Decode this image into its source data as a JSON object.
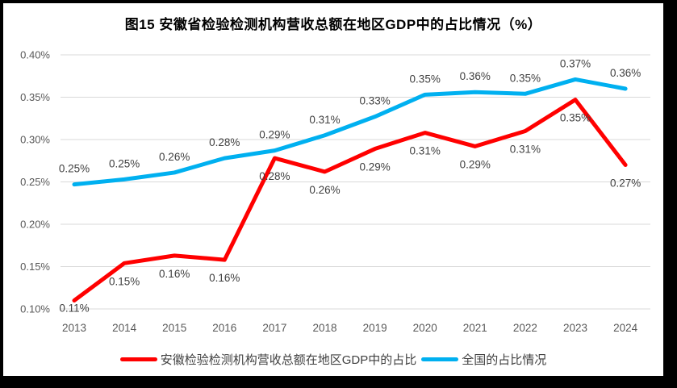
{
  "title": "图15 安徽省检验检测机构营收总额在地区GDP中的占比情况（%）",
  "colors": {
    "anhui_line": "#FF0000",
    "national_line": "#00B0F0",
    "gridline": "#D9D9D9",
    "tick_label": "#595959",
    "data_label": "#404040",
    "frame_border": "#000000",
    "background": "#FFFFFF"
  },
  "chart_data": {
    "type": "line",
    "title": "图15 安徽省检验检测机构营收总额在地区GDP中的占比情况（%）",
    "xlabel": "",
    "ylabel": "",
    "categories": [
      "2013",
      "2014",
      "2015",
      "2016",
      "2017",
      "2018",
      "2019",
      "2020",
      "2021",
      "2022",
      "2023",
      "2024"
    ],
    "y_ticks": [
      "0.10%",
      "0.15%",
      "0.20%",
      "0.25%",
      "0.30%",
      "0.35%",
      "0.40%"
    ],
    "ylim": [
      0.1,
      0.4
    ],
    "y_step": 0.05,
    "grid": "horizontal",
    "legend_position": "bottom",
    "series": [
      {
        "name": "安徽检验检测机构营收总额在地区GDP中的占比",
        "color": "#FF0000",
        "label_position": "below",
        "values": [
          0.11,
          0.15,
          0.16,
          0.16,
          0.28,
          0.26,
          0.29,
          0.31,
          0.29,
          0.31,
          0.35,
          0.27
        ],
        "labels": [
          "0.11%",
          "0.15%",
          "0.16%",
          "0.16%",
          "0.28%",
          "0.26%",
          "0.29%",
          "0.31%",
          "0.29%",
          "0.31%",
          "0.35%",
          "0.27%"
        ],
        "values_precise": [
          0.11,
          0.154,
          0.163,
          0.158,
          0.278,
          0.262,
          0.289,
          0.308,
          0.292,
          0.31,
          0.347,
          0.27
        ]
      },
      {
        "name": "全国的占比情况",
        "color": "#00B0F0",
        "label_position": "above",
        "values": [
          0.25,
          0.25,
          0.26,
          0.28,
          0.29,
          0.31,
          0.33,
          0.35,
          0.36,
          0.35,
          0.37,
          0.36
        ],
        "labels": [
          "0.25%",
          "0.25%",
          "0.26%",
          "0.28%",
          "0.29%",
          "0.31%",
          "0.33%",
          "0.35%",
          "0.36%",
          "0.35%",
          "0.37%",
          "0.36%"
        ],
        "values_precise": [
          0.247,
          0.253,
          0.261,
          0.278,
          0.287,
          0.305,
          0.327,
          0.353,
          0.356,
          0.354,
          0.371,
          0.36
        ]
      }
    ]
  },
  "legend": {
    "items": [
      {
        "label": "安徽检验检测机构营收总额在地区GDP中的占比",
        "color": "#FF0000"
      },
      {
        "label": "全国的占比情况",
        "color": "#00B0F0"
      }
    ]
  }
}
